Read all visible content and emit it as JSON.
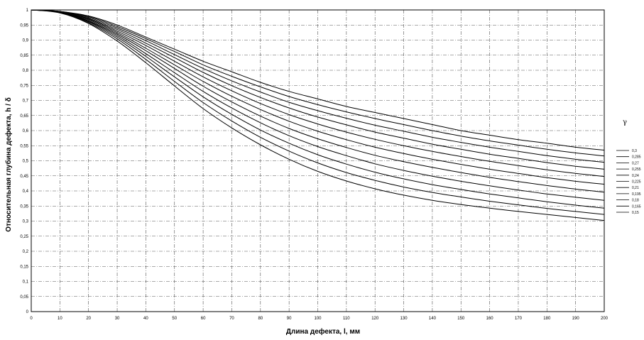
{
  "chart_data": {
    "type": "line",
    "xlabel": "Длина дефекта, l, мм",
    "ylabel": "Относительная глубина дефекта, h / δ",
    "legend_title": "γ",
    "legend_position": "right",
    "grid": true,
    "xlim": [
      0,
      200
    ],
    "ylim": [
      0,
      1
    ],
    "x_ticks": [
      "0",
      "10",
      "20",
      "30",
      "40",
      "50",
      "60",
      "70",
      "80",
      "90",
      "100",
      "110",
      "120",
      "130",
      "140",
      "150",
      "160",
      "170",
      "180",
      "190",
      "200"
    ],
    "y_ticks": [
      "0",
      "0,05",
      "0,1",
      "0,15",
      "0,2",
      "0,25",
      "0,3",
      "0,35",
      "0,4",
      "0,45",
      "0,5",
      "0,55",
      "0,6",
      "0,65",
      "0,7",
      "0,75",
      "0,8",
      "0,85",
      "0,9",
      "0,95",
      "1"
    ],
    "x": [
      0,
      10,
      20,
      30,
      40,
      50,
      60,
      70,
      80,
      90,
      100,
      110,
      120,
      130,
      140,
      150,
      160,
      170,
      180,
      190,
      200
    ],
    "series": [
      {
        "name": "0,3",
        "values": [
          1.0,
          0.995,
          0.98,
          0.95,
          0.91,
          0.87,
          0.83,
          0.795,
          0.76,
          0.73,
          0.705,
          0.68,
          0.66,
          0.64,
          0.62,
          0.6,
          0.585,
          0.57,
          0.558,
          0.545,
          0.535
        ]
      },
      {
        "name": "0,285",
        "values": [
          1.0,
          0.995,
          0.978,
          0.945,
          0.905,
          0.862,
          0.818,
          0.78,
          0.745,
          0.713,
          0.686,
          0.662,
          0.64,
          0.62,
          0.6,
          0.582,
          0.566,
          0.552,
          0.538,
          0.526,
          0.516
        ]
      },
      {
        "name": "0,27",
        "values": [
          1.0,
          0.995,
          0.975,
          0.94,
          0.898,
          0.852,
          0.806,
          0.765,
          0.728,
          0.694,
          0.666,
          0.641,
          0.618,
          0.598,
          0.578,
          0.561,
          0.545,
          0.531,
          0.517,
          0.505,
          0.495
        ]
      },
      {
        "name": "0,255",
        "values": [
          1.0,
          0.994,
          0.972,
          0.935,
          0.89,
          0.842,
          0.793,
          0.749,
          0.71,
          0.675,
          0.645,
          0.619,
          0.595,
          0.575,
          0.555,
          0.538,
          0.522,
          0.508,
          0.494,
          0.482,
          0.472
        ]
      },
      {
        "name": "0,24",
        "values": [
          1.0,
          0.994,
          0.97,
          0.93,
          0.882,
          0.83,
          0.778,
          0.732,
          0.69,
          0.653,
          0.622,
          0.595,
          0.571,
          0.55,
          0.531,
          0.514,
          0.498,
          0.484,
          0.47,
          0.458,
          0.448
        ]
      },
      {
        "name": "0,225",
        "values": [
          1.0,
          0.993,
          0.967,
          0.925,
          0.873,
          0.818,
          0.763,
          0.714,
          0.67,
          0.631,
          0.598,
          0.57,
          0.545,
          0.524,
          0.505,
          0.488,
          0.472,
          0.458,
          0.444,
          0.432,
          0.422
        ]
      },
      {
        "name": "0,21",
        "values": [
          1.0,
          0.993,
          0.964,
          0.92,
          0.865,
          0.806,
          0.747,
          0.695,
          0.648,
          0.607,
          0.573,
          0.544,
          0.518,
          0.497,
          0.478,
          0.461,
          0.445,
          0.431,
          0.418,
          0.406,
          0.396
        ]
      },
      {
        "name": "0,195",
        "values": [
          1.0,
          0.992,
          0.962,
          0.915,
          0.855,
          0.792,
          0.73,
          0.675,
          0.626,
          0.583,
          0.547,
          0.517,
          0.49,
          0.468,
          0.449,
          0.432,
          0.417,
          0.403,
          0.39,
          0.379,
          0.369
        ]
      },
      {
        "name": "0,18",
        "values": [
          1.0,
          0.992,
          0.96,
          0.91,
          0.846,
          0.778,
          0.712,
          0.654,
          0.602,
          0.558,
          0.52,
          0.489,
          0.462,
          0.44,
          0.421,
          0.405,
          0.39,
          0.377,
          0.364,
          0.353,
          0.343
        ]
      },
      {
        "name": "0,165",
        "values": [
          1.0,
          0.991,
          0.957,
          0.904,
          0.836,
          0.763,
          0.693,
          0.632,
          0.578,
          0.532,
          0.493,
          0.461,
          0.435,
          0.413,
          0.395,
          0.38,
          0.366,
          0.354,
          0.342,
          0.332,
          0.322
        ]
      },
      {
        "name": "0,15",
        "values": [
          1.0,
          0.99,
          0.955,
          0.897,
          0.825,
          0.748,
          0.673,
          0.609,
          0.553,
          0.505,
          0.465,
          0.433,
          0.407,
          0.386,
          0.369,
          0.355,
          0.343,
          0.332,
          0.322,
          0.312,
          0.302
        ]
      }
    ]
  }
}
